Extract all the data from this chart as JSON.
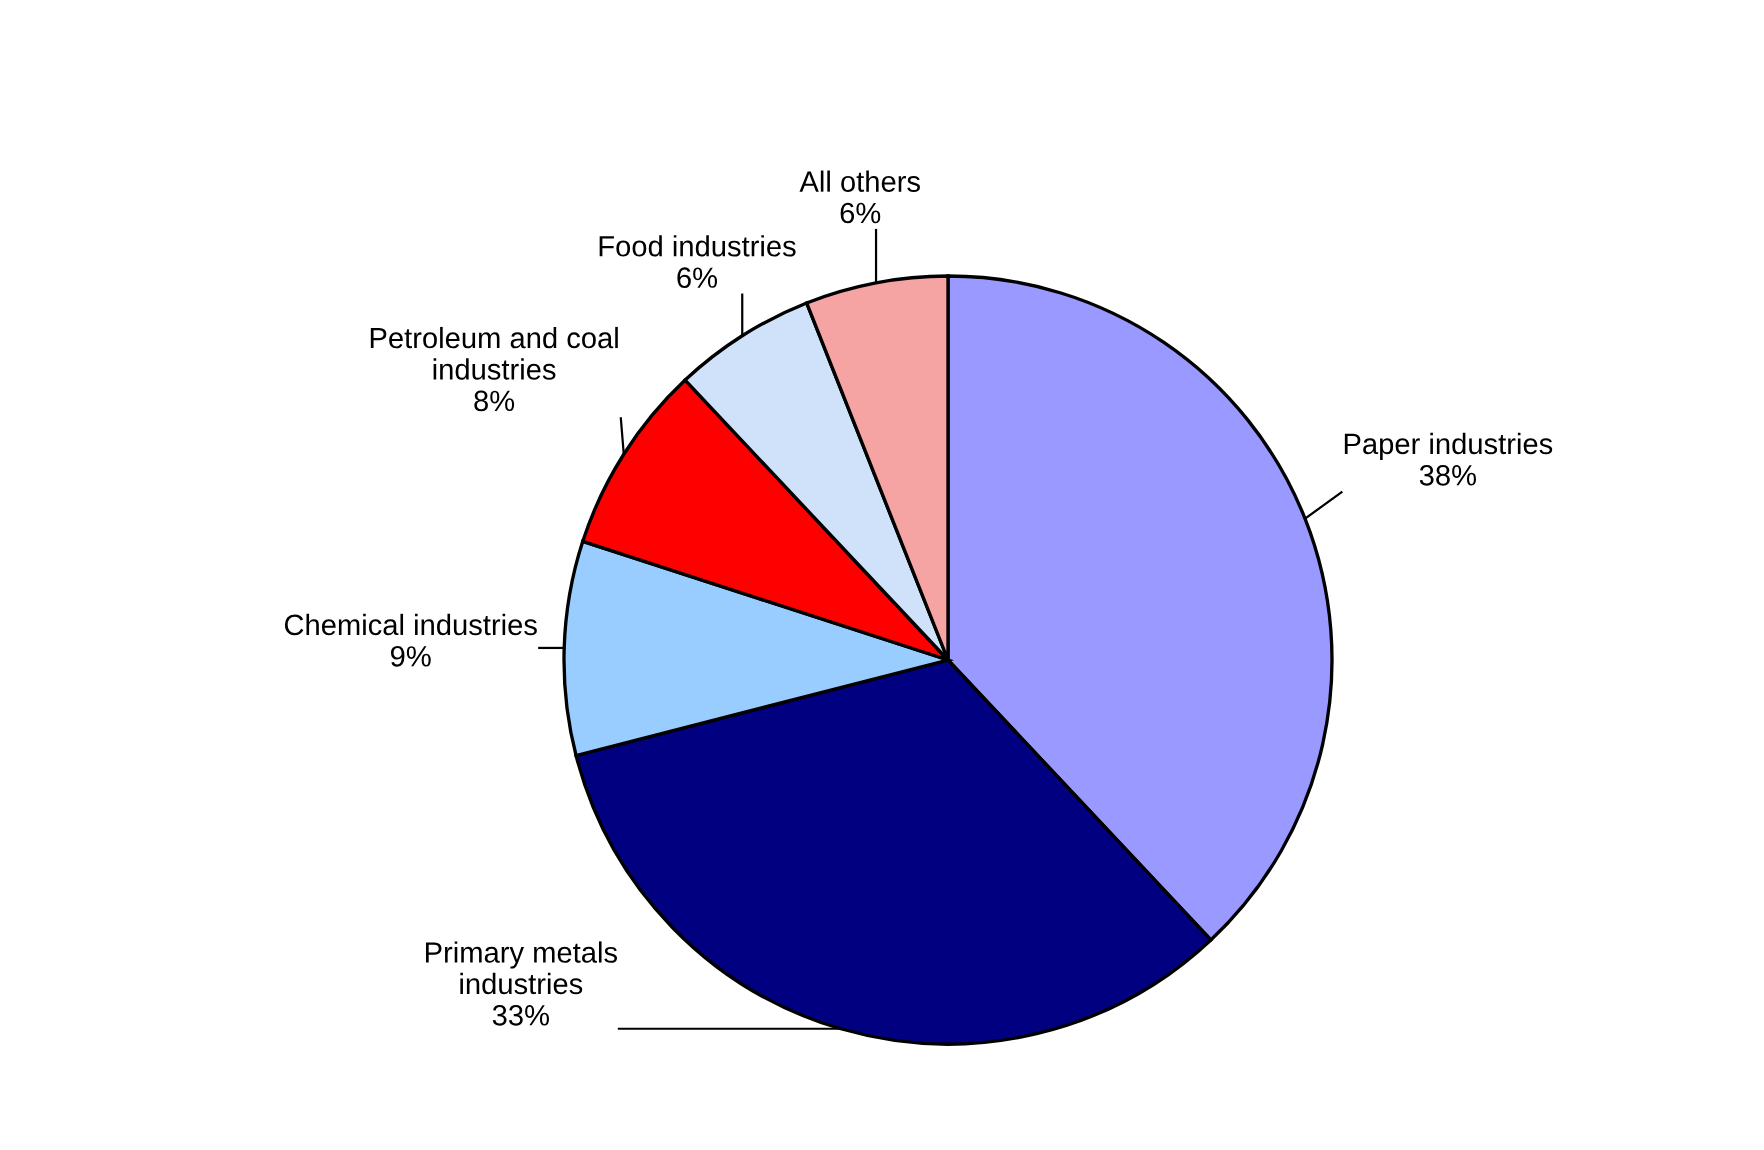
{
  "chart_data": {
    "type": "pie",
    "categories": [
      "Paper industries",
      "Primary metals\nindustries",
      "Chemical industries",
      "Petroleum and coal\nindustries",
      "Food industries",
      "All others"
    ],
    "values": [
      38,
      33,
      9,
      8,
      6,
      6
    ],
    "colors": [
      "#9999ff",
      "#000080",
      "#99ccff",
      "#ff0000",
      "#cfe2fa",
      "#f6a3a3"
    ],
    "value_labels": [
      "38%",
      "33%",
      "9%",
      "8%",
      "6%",
      "6%"
    ]
  }
}
